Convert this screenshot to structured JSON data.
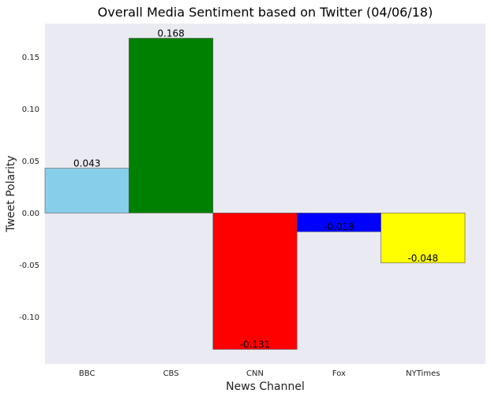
{
  "chart_data": {
    "type": "bar",
    "title": "Overall Media Sentiment based on Twitter (04/06/18)",
    "xlabel": "News Channel",
    "ylabel": "Tweet Polarity",
    "categories": [
      "BBC",
      "CBS",
      "CNN",
      "Fox",
      "NYTimes"
    ],
    "values": [
      0.043,
      0.168,
      -0.131,
      -0.018,
      -0.048
    ],
    "value_labels": [
      "0.043",
      "0.168",
      "-0.131",
      "-0.018",
      "-0.048"
    ],
    "colors": [
      "#87ceeb",
      "#008000",
      "#ff0000",
      "#0000ff",
      "#ffff00"
    ],
    "ylim": [
      -0.145,
      0.182
    ],
    "yticks": [
      -0.1,
      -0.05,
      0.0,
      0.05,
      0.1,
      0.15
    ],
    "ytick_labels": [
      "-0.10",
      "-0.05",
      "0.00",
      "0.05",
      "0.10",
      "0.15"
    ],
    "grid": false,
    "background": "#eaeaf2"
  }
}
